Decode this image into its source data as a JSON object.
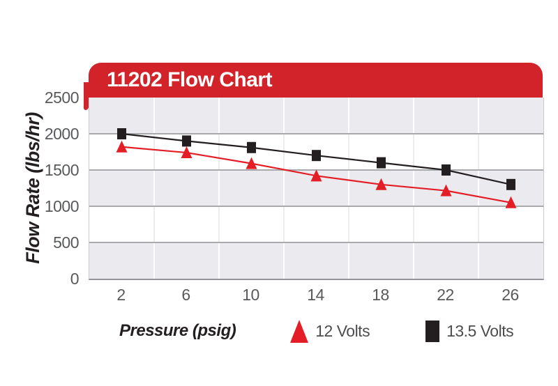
{
  "title": "11202 Flow Chart",
  "colors": {
    "banner_red": "#d2232a",
    "series_red": "#e31e26",
    "series_black": "#231f20",
    "band_gray": "#ebebef",
    "hgrid_gray": "#a7a9ac",
    "vgrid_on_gray": "#ffffff",
    "vgrid_on_white": "#ececf0",
    "tick_text": "#58595b",
    "legend_text": "#4d4d4f",
    "banner_text": "#ffffff"
  },
  "chart_data": {
    "type": "line",
    "title": "11202 Flow Chart",
    "xlabel": "Pressure (psig)",
    "ylabel": "Flow Rate (lbs/hr)",
    "x": [
      2,
      6,
      10,
      14,
      18,
      22,
      26
    ],
    "xtick_labels": [
      "2",
      "6",
      "10",
      "14",
      "18",
      "22",
      "26"
    ],
    "ylim": [
      0,
      2500
    ],
    "ytick_step": 500,
    "yticks": [
      2500,
      2000,
      1500,
      1000,
      500,
      0
    ],
    "grid": "horizontal-major, alternating-bands, vertical-cell-boundaries",
    "legend_position": "bottom",
    "series": [
      {
        "name": "12 Volts",
        "marker": "triangle",
        "color": "#e31e26",
        "values": [
          1820,
          1740,
          1590,
          1420,
          1300,
          1215,
          1050
        ]
      },
      {
        "name": "13.5 Volts",
        "marker": "square",
        "color": "#231f20",
        "values": [
          2000,
          1900,
          1810,
          1700,
          1600,
          1500,
          1300
        ]
      }
    ]
  }
}
